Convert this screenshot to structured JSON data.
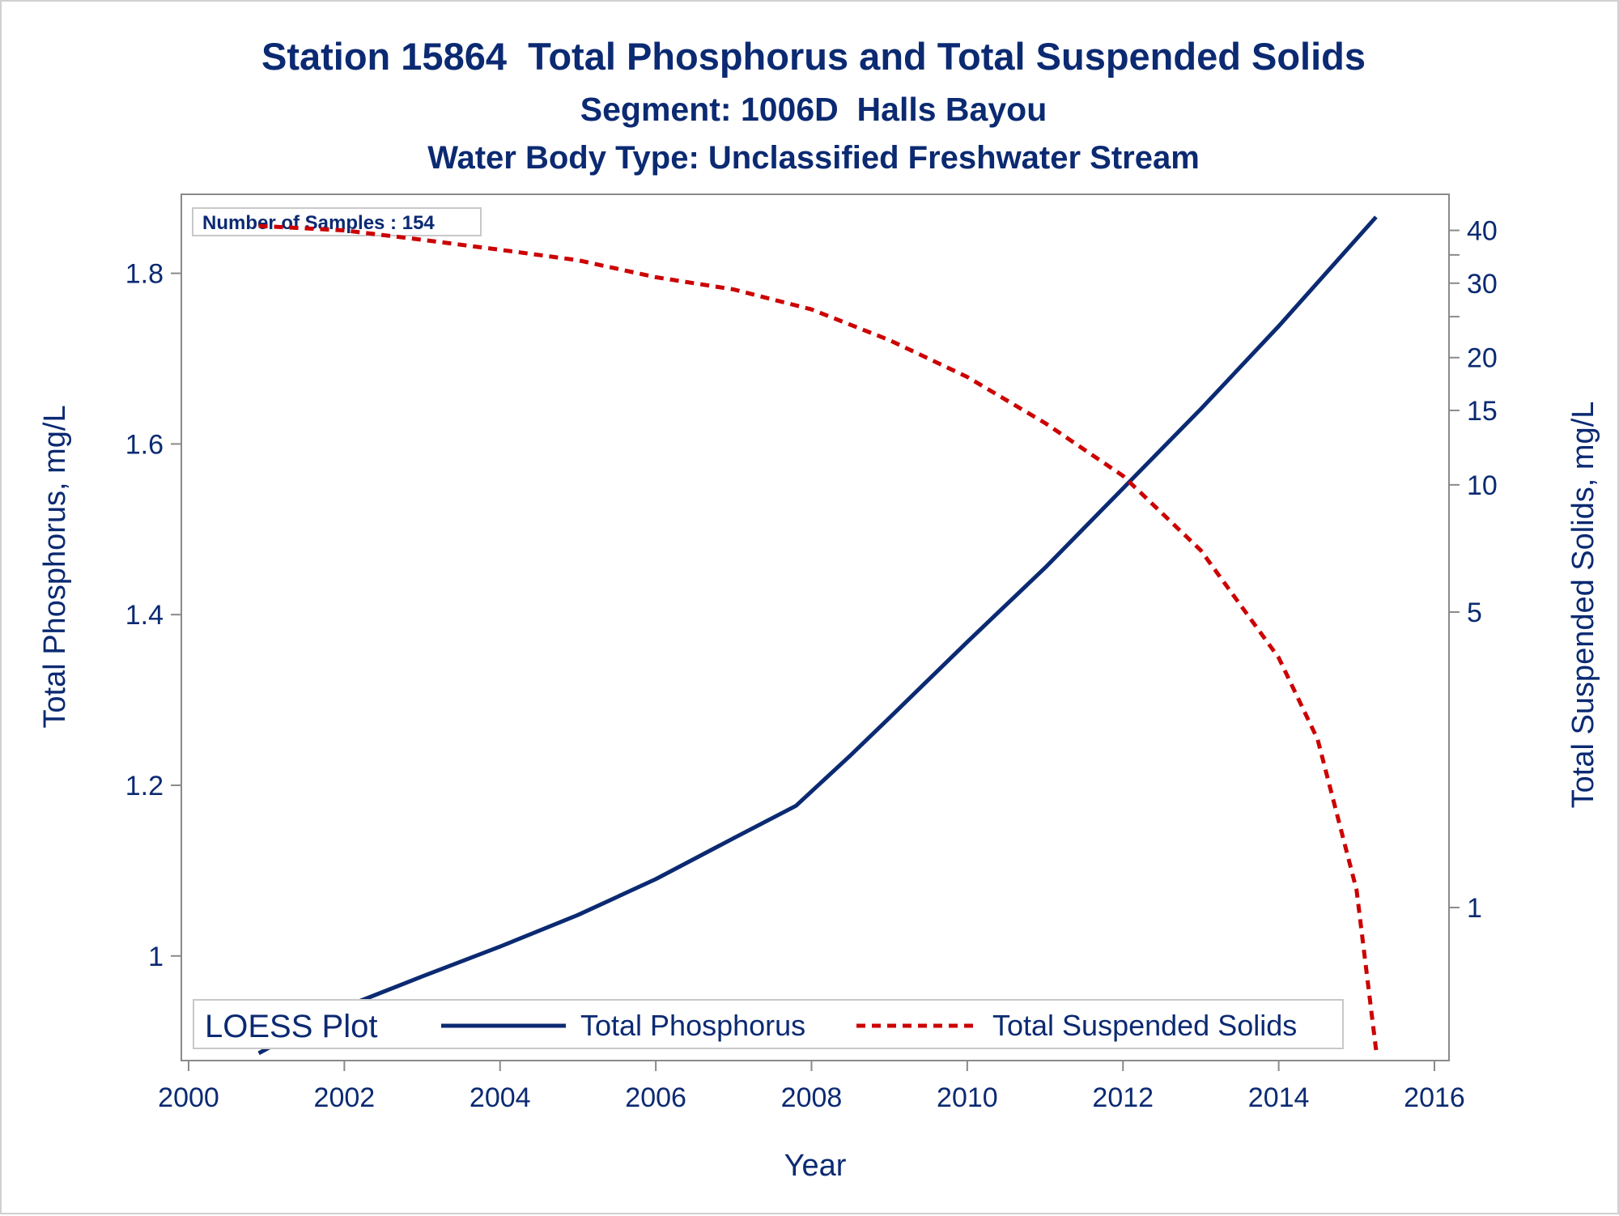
{
  "chart_data": {
    "type": "line",
    "title": "Station 15864  Total Phosphorus and Total Suspended Solids",
    "subtitle": "Segment: 1006D  Halls Bayou",
    "subtitle2": "Water Body Type: Unclassified Freshwater Stream",
    "xlabel": "Year",
    "ylabel": "Total Phosphorus, mg/L",
    "y2label": "Total Suspended Solids, mg/L",
    "annotation": "Number of Samples : 154",
    "legend_title": "LOESS Plot",
    "legend_position": "bottom-inside",
    "grid": false,
    "xlim": [
      2000,
      2016
    ],
    "xticks": [
      2000,
      2002,
      2004,
      2006,
      2008,
      2010,
      2012,
      2014,
      2016
    ],
    "ylim": [
      0.885,
      1.885
    ],
    "yticks": [
      1,
      1.2,
      1.4,
      1.6,
      1.8
    ],
    "ytick_labels": [
      "1",
      "1.2",
      "1.4",
      "1.6",
      "1.8"
    ],
    "y2_scale": "log",
    "y2lim": [
      0.45,
      47
    ],
    "y2ticks": [
      1,
      5,
      10,
      15,
      20,
      30,
      40
    ],
    "y2ticks_unlabeled": [
      25,
      35
    ],
    "series": [
      {
        "name": "Total Phosphorus",
        "axis": "left",
        "color": "#0b2a72",
        "style": "solid",
        "x": [
          2000.9,
          2002,
          2003,
          2004,
          2005,
          2006,
          2007,
          2007.8,
          2008.5,
          2009,
          2010,
          2011,
          2012,
          2013,
          2014,
          2015.25
        ],
        "y": [
          0.886,
          0.94,
          0.976,
          1.011,
          1.048,
          1.09,
          1.138,
          1.176,
          1.235,
          1.279,
          1.368,
          1.455,
          1.548,
          1.641,
          1.738,
          1.866
        ]
      },
      {
        "name": "Total Suspended Solids",
        "axis": "right",
        "color": "#cc0000",
        "style": "dashed",
        "x": [
          2000.9,
          2002,
          2003,
          2004,
          2005,
          2006,
          2007,
          2008,
          2009,
          2010,
          2011,
          2012,
          2013,
          2014,
          2014.5,
          2015,
          2015.25
        ],
        "y": [
          41,
          40,
          38,
          36,
          34,
          31,
          29,
          26,
          22,
          18,
          14,
          10.5,
          7,
          3.9,
          2.5,
          1.1,
          0.46
        ]
      }
    ]
  }
}
